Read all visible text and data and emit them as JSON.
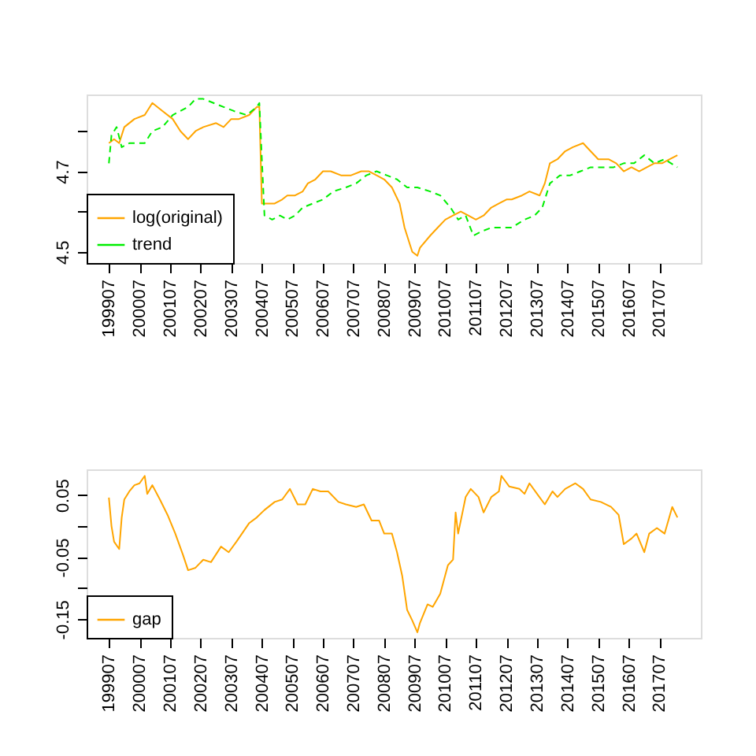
{
  "chart_data": [
    {
      "type": "line",
      "xlim": [
        "1998-10-08",
        "2018-11-08"
      ],
      "ylim": [
        4.472,
        4.891
      ],
      "xticks": [
        {
          "value": "1999-07",
          "label": "199907"
        },
        {
          "value": "2000-07",
          "label": "200007"
        },
        {
          "value": "2001-07",
          "label": "200107"
        },
        {
          "value": "2002-07",
          "label": "200207"
        },
        {
          "value": "2003-07",
          "label": "200307"
        },
        {
          "value": "2004-07",
          "label": "200407"
        },
        {
          "value": "2005-07",
          "label": "200507"
        },
        {
          "value": "2006-07",
          "label": "200607"
        },
        {
          "value": "2007-07",
          "label": "200707"
        },
        {
          "value": "2008-07",
          "label": "200807"
        },
        {
          "value": "2009-07",
          "label": "200907"
        },
        {
          "value": "2010-07",
          "label": "201007"
        },
        {
          "value": "2011-07",
          "label": "201107"
        },
        {
          "value": "2012-07",
          "label": "201207"
        },
        {
          "value": "2013-07",
          "label": "201307"
        },
        {
          "value": "2014-07",
          "label": "201407"
        },
        {
          "value": "2015-07",
          "label": "201507"
        },
        {
          "value": "2016-07",
          "label": "201607"
        },
        {
          "value": "2017-07",
          "label": "201707"
        }
      ],
      "yticks": [
        4.5,
        {
          "value": 4.6,
          "label": null
        },
        4.7,
        {
          "value": 4.8,
          "label": null
        }
      ],
      "grid": false,
      "legend": "bottom left",
      "series": [
        {
          "name": "log(original)",
          "color": "#ffa500",
          "line_style": "solid",
          "x": [
            "1999-07",
            "1999-09",
            "1999-11",
            "2000-01",
            "2000-05",
            "2000-09",
            "2000-12",
            "2001-04",
            "2001-08",
            "2001-11",
            "2002-02",
            "2002-05",
            "2002-08",
            "2003-01",
            "2003-04",
            "2003-07",
            "2003-10",
            "2004-02",
            "2004-05",
            "2004-06",
            "2004-07",
            "2004-09",
            "2004-12",
            "2005-03",
            "2005-05",
            "2005-08",
            "2005-11",
            "2006-01",
            "2006-04",
            "2006-07",
            "2006-10",
            "2007-02",
            "2007-06",
            "2007-10",
            "2008-01",
            "2008-04",
            "2008-07",
            "2008-10",
            "2009-01",
            "2009-03",
            "2009-05",
            "2009-06",
            "2009-08",
            "2009-09",
            "2010-01",
            "2010-04",
            "2010-07",
            "2010-10",
            "2011-01",
            "2011-04",
            "2011-07",
            "2011-10",
            "2012-01",
            "2012-04",
            "2012-07",
            "2012-09",
            "2013-01",
            "2013-04",
            "2013-08",
            "2013-10",
            "2013-12",
            "2014-03",
            "2014-06",
            "2014-09",
            "2015-01",
            "2015-04",
            "2015-07",
            "2015-11",
            "2016-02",
            "2016-05",
            "2016-08",
            "2016-11",
            "2017-02",
            "2017-05",
            "2017-08",
            "2017-11",
            "2018-02"
          ],
          "values": [
            4.77,
            4.78,
            4.77,
            4.81,
            4.83,
            4.84,
            4.87,
            4.85,
            4.83,
            4.8,
            4.78,
            4.8,
            4.81,
            4.82,
            4.81,
            4.83,
            4.83,
            4.84,
            4.86,
            4.86,
            4.62,
            4.62,
            4.62,
            4.63,
            4.64,
            4.64,
            4.65,
            4.67,
            4.68,
            4.7,
            4.7,
            4.69,
            4.69,
            4.7,
            4.7,
            4.69,
            4.68,
            4.66,
            4.62,
            4.56,
            4.52,
            4.5,
            4.49,
            4.51,
            4.54,
            4.56,
            4.58,
            4.59,
            4.6,
            4.59,
            4.58,
            4.59,
            4.61,
            4.62,
            4.63,
            4.63,
            4.64,
            4.65,
            4.64,
            4.67,
            4.72,
            4.73,
            4.75,
            4.76,
            4.77,
            4.75,
            4.73,
            4.73,
            4.72,
            4.7,
            4.71,
            4.7,
            4.71,
            4.72,
            4.72,
            4.73,
            4.74
          ]
        },
        {
          "name": "trend",
          "color": "#00ee00",
          "line_style": "dashed",
          "x": [
            "1999-07",
            "1999-08",
            "1999-10",
            "1999-12",
            "2000-03",
            "2000-06",
            "2000-09",
            "2000-12",
            "2001-04",
            "2001-08",
            "2001-11",
            "2002-02",
            "2002-05",
            "2002-08",
            "2002-12",
            "2003-04",
            "2003-08",
            "2004-01",
            "2004-05",
            "2004-06",
            "2004-07",
            "2004-08",
            "2004-11",
            "2005-02",
            "2005-05",
            "2005-08",
            "2005-11",
            "2006-03",
            "2006-07",
            "2006-11",
            "2007-04",
            "2007-08",
            "2007-12",
            "2008-04",
            "2008-08",
            "2008-12",
            "2009-04",
            "2009-08",
            "2010-01",
            "2010-05",
            "2010-09",
            "2010-12",
            "2011-03",
            "2011-06",
            "2011-09",
            "2012-01",
            "2012-05",
            "2012-09",
            "2013-02",
            "2013-06",
            "2013-09",
            "2013-12",
            "2014-04",
            "2014-08",
            "2014-12",
            "2015-04",
            "2015-08",
            "2016-01",
            "2016-05",
            "2016-09",
            "2017-01",
            "2017-05",
            "2017-09",
            "2018-02"
          ],
          "values": [
            4.72,
            4.79,
            4.81,
            4.76,
            4.77,
            4.77,
            4.77,
            4.8,
            4.81,
            4.84,
            4.85,
            4.86,
            4.88,
            4.88,
            4.87,
            4.86,
            4.85,
            4.84,
            4.86,
            4.87,
            4.73,
            4.59,
            4.58,
            4.59,
            4.58,
            4.59,
            4.61,
            4.62,
            4.63,
            4.65,
            4.66,
            4.67,
            4.69,
            4.7,
            4.69,
            4.68,
            4.66,
            4.66,
            4.65,
            4.64,
            4.61,
            4.58,
            4.59,
            4.54,
            4.55,
            4.56,
            4.56,
            4.56,
            4.58,
            4.59,
            4.61,
            4.67,
            4.69,
            4.69,
            4.7,
            4.71,
            4.71,
            4.71,
            4.72,
            4.72,
            4.74,
            4.72,
            4.73,
            4.71
          ]
        }
      ]
    },
    {
      "type": "line",
      "xlim": [
        "1998-10-08",
        "2018-11-08"
      ],
      "ylim": [
        -0.18,
        0.0915
      ],
      "xticks": [
        {
          "value": "1999-07",
          "label": "199907"
        },
        {
          "value": "2000-07",
          "label": "200007"
        },
        {
          "value": "2001-07",
          "label": "200107"
        },
        {
          "value": "2002-07",
          "label": "200207"
        },
        {
          "value": "2003-07",
          "label": "200307"
        },
        {
          "value": "2004-07",
          "label": "200407"
        },
        {
          "value": "2005-07",
          "label": "200507"
        },
        {
          "value": "2006-07",
          "label": "200607"
        },
        {
          "value": "2007-07",
          "label": "200707"
        },
        {
          "value": "2008-07",
          "label": "200807"
        },
        {
          "value": "2009-07",
          "label": "200907"
        },
        {
          "value": "2010-07",
          "label": "201007"
        },
        {
          "value": "2011-07",
          "label": "201107"
        },
        {
          "value": "2012-07",
          "label": "201207"
        },
        {
          "value": "2013-07",
          "label": "201307"
        },
        {
          "value": "2014-07",
          "label": "201407"
        },
        {
          "value": "2015-07",
          "label": "201507"
        },
        {
          "value": "2016-07",
          "label": "201607"
        },
        {
          "value": "2017-07",
          "label": "201707"
        }
      ],
      "yticks": [
        {
          "value": -0.15,
          "label": "-0.15"
        },
        {
          "value": -0.1,
          "label": null
        },
        {
          "value": -0.05,
          "label": "-0.05"
        },
        {
          "value": 0,
          "label": null
        },
        {
          "value": 0.05,
          "label": "0.05"
        }
      ],
      "grid": false,
      "legend": "bottom left",
      "series": [
        {
          "name": "gap",
          "color": "#ffa500",
          "line_style": "solid",
          "x": [
            "1999-07",
            "1999-08",
            "1999-09",
            "1999-11",
            "1999-12",
            "2000-01",
            "2000-03",
            "2000-05",
            "2000-07",
            "2000-09",
            "2000-10",
            "2000-12",
            "2001-03",
            "2001-06",
            "2001-09",
            "2001-12",
            "2002-02",
            "2002-05",
            "2002-08",
            "2002-11",
            "2003-03",
            "2003-06",
            "2003-09",
            "2004-02",
            "2004-05",
            "2004-08",
            "2004-12",
            "2005-03",
            "2005-06",
            "2005-09",
            "2005-12",
            "2006-03",
            "2006-06",
            "2006-09",
            "2007-01",
            "2007-04",
            "2007-08",
            "2007-11",
            "2008-02",
            "2008-05",
            "2008-07",
            "2008-10",
            "2008-12",
            "2009-02",
            "2009-04",
            "2009-06",
            "2009-08",
            "2009-09",
            "2009-12",
            "2010-02",
            "2010-05",
            "2010-08",
            "2010-10",
            "2010-11",
            "2010-12",
            "2011-03",
            "2011-05",
            "2011-08",
            "2011-10",
            "2012-01",
            "2012-04",
            "2012-05",
            "2012-08",
            "2012-12",
            "2013-02",
            "2013-04",
            "2013-07",
            "2013-10",
            "2014-01",
            "2014-03",
            "2014-06",
            "2014-10",
            "2015-01",
            "2015-04",
            "2015-08",
            "2015-12",
            "2016-03",
            "2016-05",
            "2016-08",
            "2016-10",
            "2017-01",
            "2017-03",
            "2017-06",
            "2017-09",
            "2017-12",
            "2018-02"
          ],
          "values": [
            0.046,
            0.0,
            -0.025,
            -0.037,
            0.014,
            0.043,
            0.056,
            0.066,
            0.069,
            0.081,
            0.052,
            0.066,
            0.043,
            0.018,
            -0.012,
            -0.046,
            -0.071,
            -0.067,
            -0.054,
            -0.058,
            -0.033,
            -0.042,
            -0.025,
            0.005,
            0.014,
            0.026,
            0.039,
            0.043,
            0.06,
            0.035,
            0.035,
            0.06,
            0.056,
            0.056,
            0.039,
            0.035,
            0.031,
            0.035,
            0.009,
            0.009,
            -0.012,
            -0.012,
            -0.042,
            -0.08,
            -0.135,
            -0.152,
            -0.171,
            -0.156,
            -0.126,
            -0.13,
            -0.109,
            -0.063,
            -0.054,
            0.022,
            -0.012,
            0.047,
            0.06,
            0.047,
            0.022,
            0.047,
            0.056,
            0.081,
            0.064,
            0.06,
            0.052,
            0.069,
            0.052,
            0.035,
            0.056,
            0.047,
            0.06,
            0.069,
            0.06,
            0.043,
            0.039,
            0.031,
            0.018,
            -0.029,
            -0.02,
            -0.012,
            -0.042,
            -0.012,
            -0.003,
            -0.012,
            0.031,
            0.014
          ]
        }
      ]
    }
  ]
}
